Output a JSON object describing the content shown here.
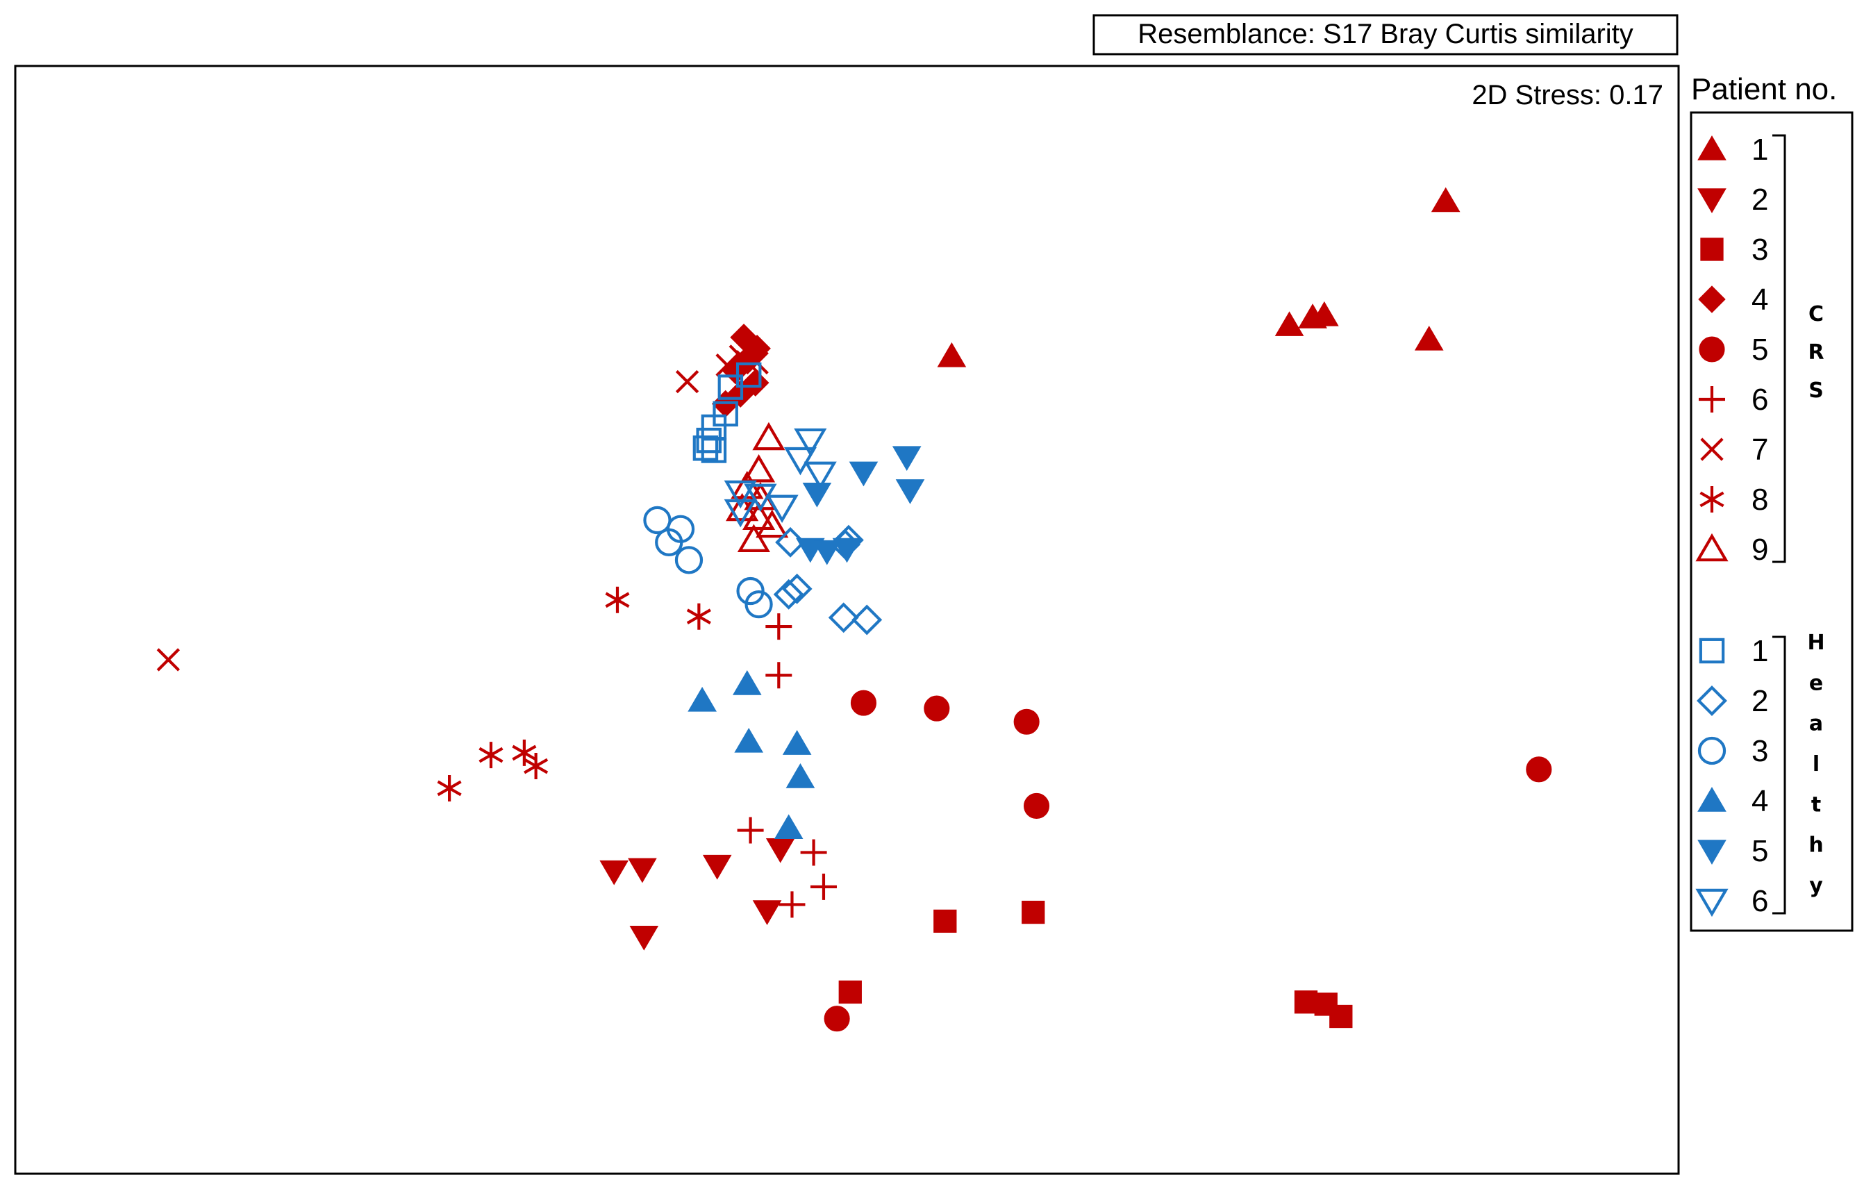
{
  "chart_data": {
    "type": "scatter",
    "title": "",
    "xlabel": "",
    "ylabel": "",
    "resemblance_label": "Resemblance: S17 Bray Curtis similarity",
    "stress_label": "2D Stress: 0.17",
    "legend_title": "Patient no.",
    "legend_placement": "right",
    "grid": false,
    "axes_scale": "MDS ordination (no printed axes); points in relative units 0-1000",
    "colors": {
      "CRS": "#c00000",
      "Healthy": "#1f77c4"
    },
    "groups": [
      {
        "label": "CRS",
        "letters": [
          "C",
          "R",
          "S"
        ]
      },
      {
        "label": "Healthy",
        "letters": [
          "H",
          "e",
          "a",
          "l",
          "t",
          "h",
          "y"
        ]
      }
    ],
    "series": [
      {
        "group": "CRS",
        "legend_label": "1",
        "color": "#c00000",
        "marker": "triangle-up-filled",
        "points": [
          [
            860,
            122
          ],
          [
            780,
            227
          ],
          [
            787,
            225
          ],
          [
            766,
            234
          ],
          [
            850,
            247
          ],
          [
            563,
            262
          ]
        ]
      },
      {
        "group": "CRS",
        "legend_label": "2",
        "color": "#c00000",
        "marker": "triangle-down-filled",
        "points": [
          [
            360,
            727
          ],
          [
            377,
            725
          ],
          [
            422,
            722
          ],
          [
            460,
            707
          ],
          [
            452,
            763
          ],
          [
            378,
            786
          ]
        ]
      },
      {
        "group": "CRS",
        "legend_label": "3",
        "color": "#c00000",
        "marker": "square-filled",
        "points": [
          [
            559,
            772
          ],
          [
            612,
            764
          ],
          [
            502,
            836
          ],
          [
            776,
            845
          ],
          [
            788,
            847
          ],
          [
            797,
            858
          ]
        ]
      },
      {
        "group": "CRS",
        "legend_label": "4",
        "color": "#c00000",
        "marker": "diamond-filled",
        "points": [
          [
            438,
            245
          ],
          [
            446,
            255
          ],
          [
            440,
            265
          ],
          [
            433,
            275
          ],
          [
            445,
            286
          ],
          [
            436,
            296
          ],
          [
            427,
            305
          ]
        ]
      },
      {
        "group": "CRS",
        "legend_label": "5",
        "color": "#c00000",
        "marker": "circle-filled",
        "points": [
          [
            510,
            575
          ],
          [
            554,
            580
          ],
          [
            608,
            592
          ],
          [
            614,
            668
          ],
          [
            916,
            635
          ],
          [
            494,
            860
          ]
        ]
      },
      {
        "group": "CRS",
        "legend_label": "6",
        "color": "#c00000",
        "marker": "plus",
        "points": [
          [
            459,
            506
          ],
          [
            459,
            550
          ],
          [
            442,
            690
          ],
          [
            480,
            710
          ],
          [
            486,
            741
          ],
          [
            467,
            757
          ]
        ]
      },
      {
        "group": "CRS",
        "legend_label": "7",
        "color": "#c00000",
        "marker": "x",
        "points": [
          [
            92,
            536
          ],
          [
            404,
            285
          ],
          [
            428,
            270
          ],
          [
            440,
            267
          ],
          [
            436,
            262
          ],
          [
            446,
            268
          ]
        ]
      },
      {
        "group": "CRS",
        "legend_label": "8",
        "color": "#c00000",
        "marker": "asterisk",
        "points": [
          [
            362,
            482
          ],
          [
            411,
            497
          ],
          [
            286,
            622
          ],
          [
            306,
            620
          ],
          [
            313,
            632
          ],
          [
            261,
            652
          ]
        ]
      },
      {
        "group": "CRS",
        "legend_label": "9",
        "color": "#c00000",
        "marker": "triangle-up-open",
        "points": [
          [
            453,
            336
          ],
          [
            447,
            365
          ],
          [
            440,
            380
          ],
          [
            448,
            390
          ],
          [
            437,
            400
          ],
          [
            447,
            408
          ],
          [
            455,
            415
          ],
          [
            444,
            428
          ]
        ]
      },
      {
        "group": "Healthy",
        "legend_label": "1",
        "color": "#1f77c4",
        "marker": "square-open",
        "points": [
          [
            441,
            279
          ],
          [
            430,
            290
          ],
          [
            427,
            314
          ],
          [
            420,
            326
          ],
          [
            417,
            338
          ],
          [
            415,
            345
          ],
          [
            420,
            347
          ]
        ]
      },
      {
        "group": "Healthy",
        "legend_label": "2",
        "color": "#1f77c4",
        "marker": "diamond-open",
        "points": [
          [
            466,
            430
          ],
          [
            499,
            432
          ],
          [
            501,
            428
          ],
          [
            465,
            477
          ],
          [
            470,
            472
          ],
          [
            498,
            498
          ],
          [
            512,
            500
          ]
        ]
      },
      {
        "group": "Healthy",
        "legend_label": "3",
        "color": "#1f77c4",
        "marker": "circle-open",
        "points": [
          [
            386,
            410
          ],
          [
            400,
            418
          ],
          [
            393,
            430
          ],
          [
            405,
            446
          ],
          [
            442,
            474
          ],
          [
            447,
            486
          ]
        ]
      },
      {
        "group": "Healthy",
        "legend_label": "4",
        "color": "#1f77c4",
        "marker": "triangle-up-filled",
        "points": [
          [
            413,
            573
          ],
          [
            440,
            558
          ],
          [
            441,
            610
          ],
          [
            470,
            612
          ],
          [
            472,
            642
          ],
          [
            465,
            688
          ]
        ]
      },
      {
        "group": "Healthy",
        "legend_label": "5",
        "color": "#1f77c4",
        "marker": "triangle-down-filled",
        "points": [
          [
            510,
            367
          ],
          [
            536,
            353
          ],
          [
            538,
            383
          ],
          [
            482,
            386
          ],
          [
            478,
            436
          ],
          [
            488,
            438
          ],
          [
            500,
            436
          ]
        ]
      },
      {
        "group": "Healthy",
        "legend_label": "6",
        "color": "#1f77c4",
        "marker": "triangle-down-open",
        "points": [
          [
            478,
            338
          ],
          [
            472,
            355
          ],
          [
            484,
            368
          ],
          [
            436,
            385
          ],
          [
            448,
            388
          ],
          [
            461,
            398
          ],
          [
            436,
            402
          ]
        ]
      }
    ]
  }
}
